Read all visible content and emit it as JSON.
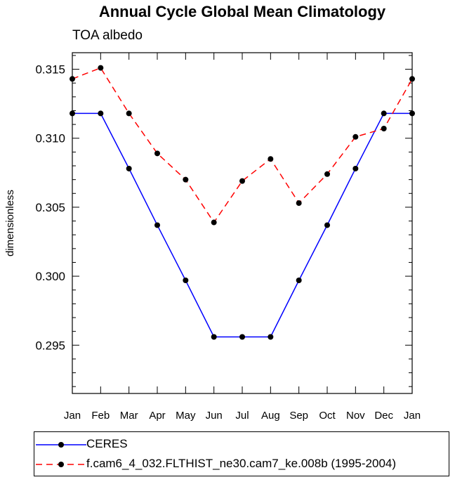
{
  "title": "Annual Cycle Global Mean Climatology",
  "subtitle": "TOA albedo",
  "chart_data": {
    "type": "line",
    "title": "Annual Cycle Global Mean Climatology",
    "subtitle": "TOA albedo",
    "xlabel": "",
    "ylabel": "dimensionless",
    "categories": [
      "Jan",
      "Feb",
      "Mar",
      "Apr",
      "May",
      "Jun",
      "Jul",
      "Aug",
      "Sep",
      "Oct",
      "Nov",
      "Dec",
      "Jan"
    ],
    "ylim": [
      0.2915,
      0.3162
    ],
    "yticks": [
      0.295,
      0.3,
      0.305,
      0.31,
      0.315
    ],
    "ytick_labels": [
      "0.295",
      "0.300",
      "0.305",
      "0.310",
      "0.315"
    ],
    "grid": false,
    "legend_position": "bottom",
    "series": [
      {
        "name": "CERES",
        "color": "#0000ff",
        "line_style": "solid",
        "values": [
          0.3118,
          0.3118,
          0.3078,
          0.3037,
          0.2997,
          0.2956,
          0.2956,
          0.2956,
          0.2997,
          0.3037,
          0.3078,
          0.3118,
          0.3118
        ]
      },
      {
        "name": "f.cam6_4_032.FLTHIST_ne30.cam7_ke.008b (1995-2004)",
        "color": "#ff0000",
        "line_style": "dashed",
        "values": [
          0.3143,
          0.3151,
          0.3118,
          0.3089,
          0.307,
          0.3039,
          0.3069,
          0.3085,
          0.3053,
          0.3074,
          0.3101,
          0.3107,
          0.3143
        ]
      }
    ]
  }
}
